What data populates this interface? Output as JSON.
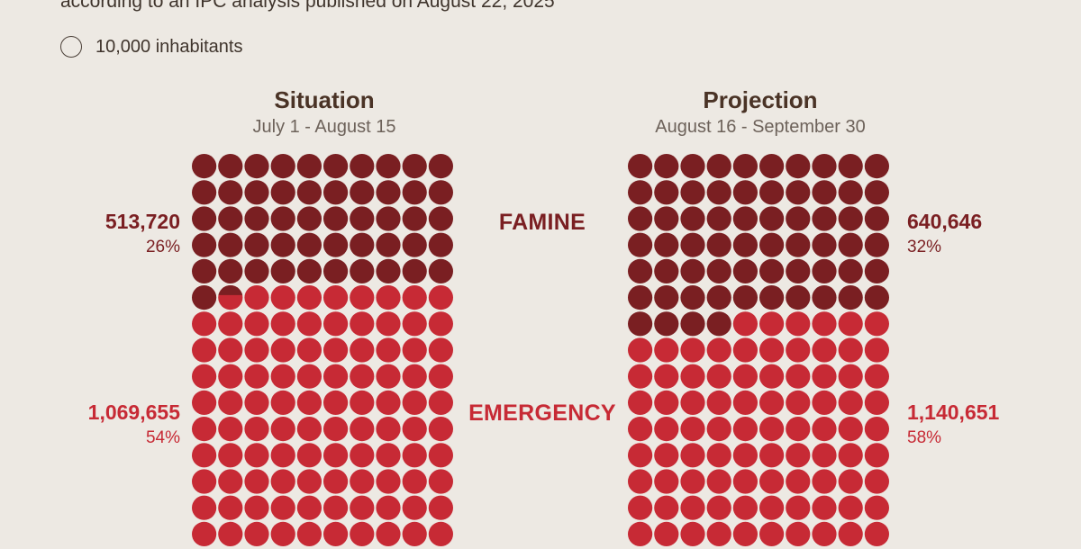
{
  "header": {
    "subtitle": "according to an IPC analysis published on August 22, 2025"
  },
  "legend": {
    "label": "10,000 inhabitants"
  },
  "colors": {
    "famine": "#7a1f22",
    "emergency": "#c72a35",
    "background": "#ede9e3"
  },
  "phases": {
    "famine_label": "FAMINE",
    "emergency_label": "EMERGENCY"
  },
  "chart_data": [
    {
      "type": "waffle",
      "title": "Situation",
      "subtitle": "July 1 - August 15",
      "unit": "10,000 inhabitants per circle",
      "columns": 10,
      "series": [
        {
          "name": "FAMINE",
          "value": 513720,
          "percent": "26%",
          "value_label": "513,720",
          "units": 51.4
        },
        {
          "name": "EMERGENCY",
          "value": 1069655,
          "percent": "54%",
          "value_label": "1,069,655",
          "units": 107
        }
      ]
    },
    {
      "type": "waffle",
      "title": "Projection",
      "subtitle": "August 16 - September 30",
      "unit": "10,000 inhabitants per circle",
      "columns": 10,
      "series": [
        {
          "name": "FAMINE",
          "value": 640646,
          "percent": "32%",
          "value_label": "640,646",
          "units": 64
        },
        {
          "name": "EMERGENCY",
          "value": 1140651,
          "percent": "58%",
          "value_label": "1,140,651",
          "units": 114
        }
      ]
    }
  ]
}
